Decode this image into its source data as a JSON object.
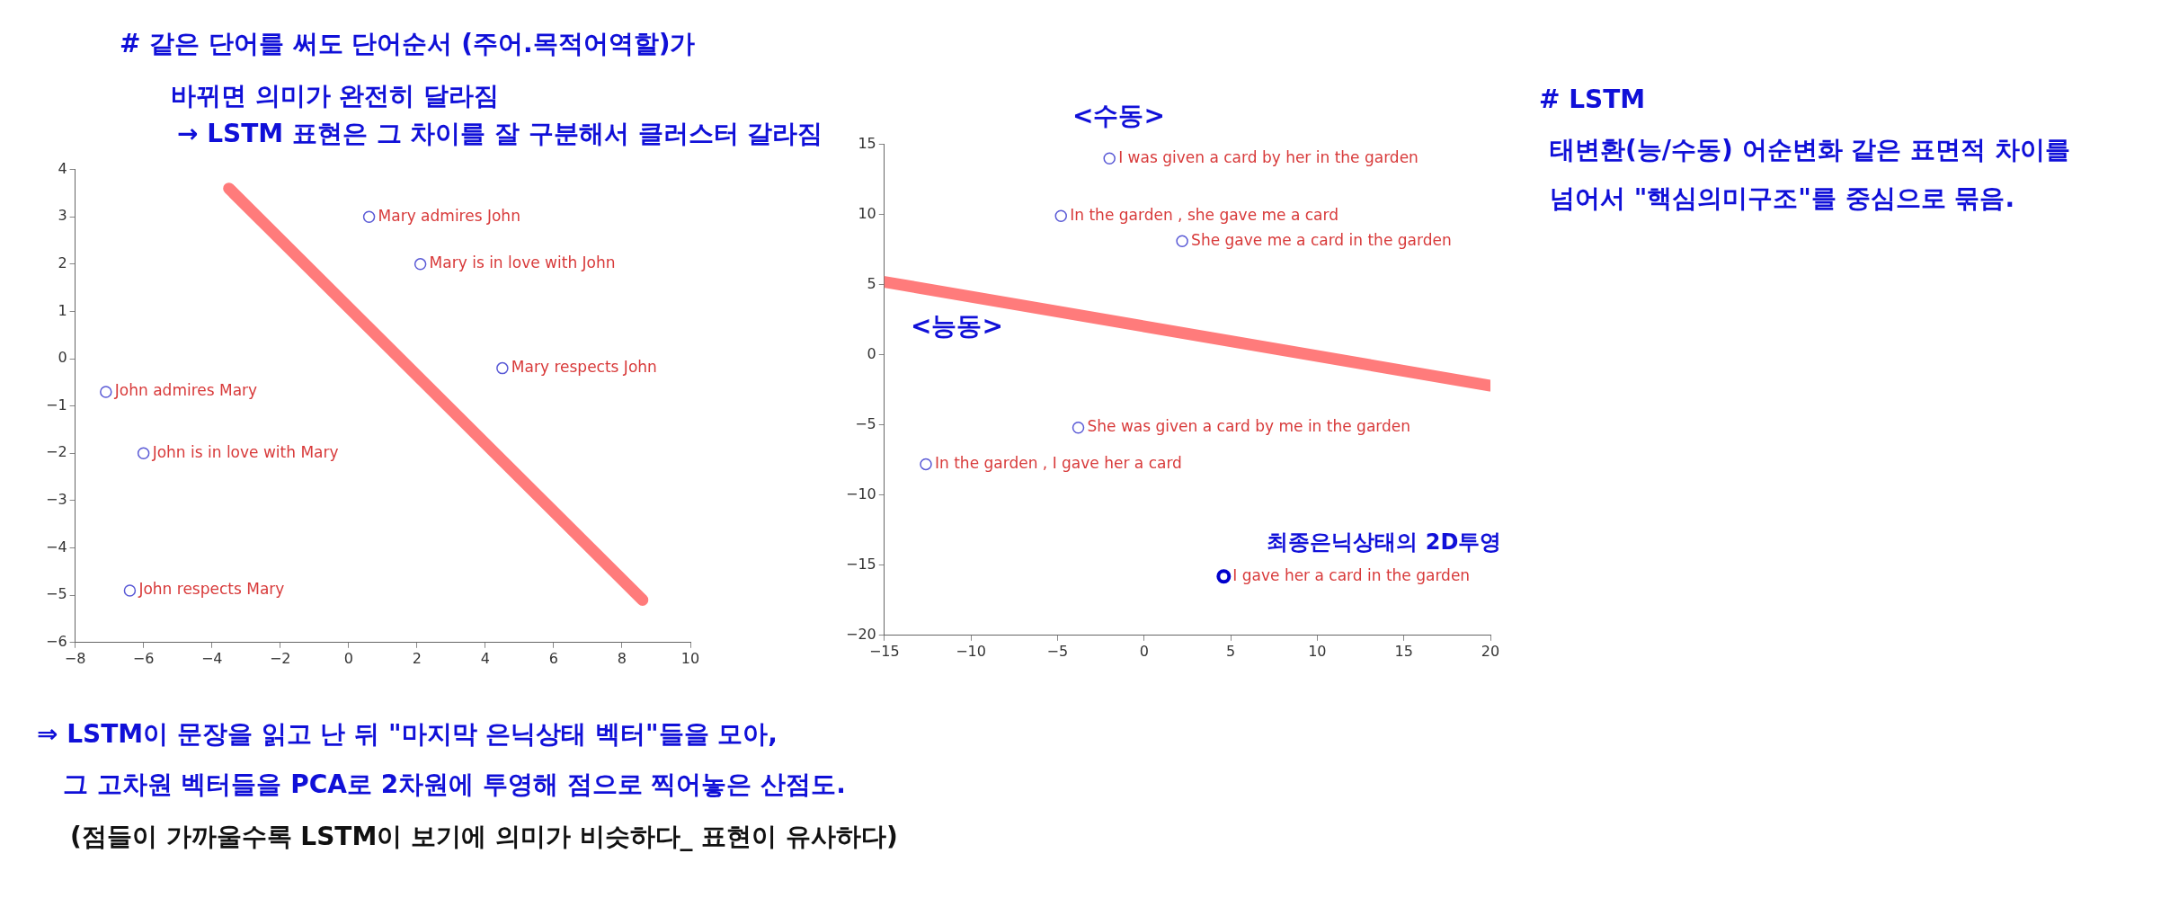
{
  "chart_data": [
    {
      "type": "scatter",
      "xlim": [
        -8,
        10
      ],
      "xticks": [
        -8,
        -6,
        -4,
        -2,
        0,
        2,
        4,
        6,
        8,
        10
      ],
      "ylim": [
        -6,
        4
      ],
      "yticks": [
        -6,
        -5,
        -4,
        -3,
        -2,
        -1,
        0,
        1,
        2,
        3,
        4
      ],
      "marker": "circle",
      "series": [
        {
          "name": "Mary admires John",
          "color": "#5a5ad6",
          "x": [
            0.6
          ],
          "values": [
            3.0
          ]
        },
        {
          "name": "Mary is in love with John",
          "color": "#5a5ad6",
          "x": [
            2.1
          ],
          "values": [
            2.0
          ]
        },
        {
          "name": "Mary respects John",
          "color": "#5a5ad6",
          "x": [
            4.5
          ],
          "values": [
            -0.2
          ]
        },
        {
          "name": "John admires Mary",
          "color": "#5a5ad6",
          "x": [
            -7.1
          ],
          "values": [
            -0.7
          ]
        },
        {
          "name": "John is in love with Mary",
          "color": "#5a5ad6",
          "x": [
            -6.0
          ],
          "values": [
            -2.0
          ]
        },
        {
          "name": "John respects Mary",
          "color": "#5a5ad6",
          "x": [
            -6.4
          ],
          "values": [
            -4.9
          ]
        },
        {
          "type": "line",
          "color": "#ff7b7b",
          "marker": "none",
          "x": [
            -3.5,
            8.6
          ],
          "values": [
            3.6,
            -5.1
          ]
        }
      ],
      "annotations": [
        "# 같은 단어를 써도 단어순서 (주어.목적어역할)가",
        "바뀌면 의미가 완전히 달라짐",
        "→ LSTM 표현은 그 차이를 잘 구분해서 클러스터 갈라짐",
        "⇒ LSTM이 문장을 읽고 난 뒤 \"마지막 은닉상태 벡터\"들을 모아,",
        "그 고차원 벡터들을 PCA로 2차원에 투영해 점으로 찍어놓은 산점도.",
        "(점들이 가까울수록 LSTM이 보기에 의미가 비슷하다_ 표현이 유사하다)"
      ]
    },
    {
      "type": "scatter",
      "xlim": [
        -15,
        20
      ],
      "xticks": [
        -15,
        -10,
        -5,
        0,
        5,
        10,
        15,
        20
      ],
      "ylim": [
        -20,
        15
      ],
      "yticks": [
        -20,
        -15,
        -10,
        -5,
        0,
        5,
        10,
        15
      ],
      "marker": "circle",
      "series": [
        {
          "name": "I was given a card by her in the garden",
          "color": "#5a5ad6",
          "x": [
            -2.0
          ],
          "values": [
            14.0
          ]
        },
        {
          "name": "In the garden , she gave me a card",
          "color": "#5a5ad6",
          "x": [
            -4.8
          ],
          "values": [
            9.9
          ]
        },
        {
          "name": "She gave me a card in the garden",
          "color": "#5a5ad6",
          "x": [
            2.2
          ],
          "values": [
            8.1
          ]
        },
        {
          "name": "She was given a card by me in the garden",
          "color": "#5a5ad6",
          "x": [
            -3.8
          ],
          "values": [
            -5.2
          ]
        },
        {
          "name": "In the garden , I gave her a card",
          "color": "#5a5ad6",
          "x": [
            -12.6
          ],
          "values": [
            -7.8
          ]
        },
        {
          "name": "I gave her a card in the garden",
          "color": "#0000cc",
          "x": [
            4.6
          ],
          "values": [
            -15.8
          ]
        },
        {
          "type": "line",
          "color": "#ff7b7b",
          "marker": "none",
          "x": [
            -15,
            20
          ],
          "values": [
            5.2,
            -2.2
          ]
        }
      ],
      "annotations": [
        "# LSTM",
        "태변환(능/수동) 어순변화 같은 표면적 차이를",
        "넘어서 \"핵심의미구조\"를 중심으로 묶음.",
        "<수동>",
        "<능동>",
        {
          "text": "최종은닉상태의 2D투영",
          "x": 4.6,
          "y": -15.8
        }
      ]
    }
  ]
}
